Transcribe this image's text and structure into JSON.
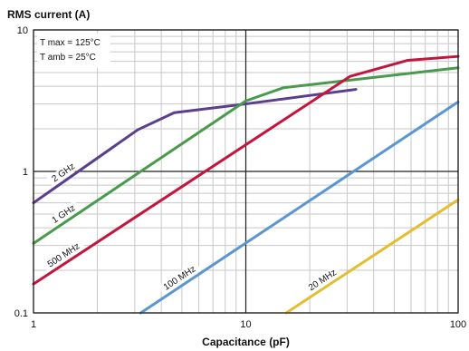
{
  "chart_data": {
    "type": "line",
    "title": "",
    "subtitle": "",
    "xlabel": "Capacitance (pF)",
    "ylabel": "RMS current (A)",
    "x_scale": "log",
    "y_scale": "log",
    "xlim": [
      1,
      100
    ],
    "ylim": [
      0.1,
      10
    ],
    "x_ticks": [
      {
        "value": 1,
        "label": "1"
      },
      {
        "value": 10,
        "label": "10"
      },
      {
        "value": 100,
        "label": "100"
      }
    ],
    "y_ticks": [
      {
        "value": 0.1,
        "label": "0.1"
      },
      {
        "value": 1,
        "label": "1"
      },
      {
        "value": 10,
        "label": "10"
      }
    ],
    "grid": true,
    "legend": "none",
    "annotations": [
      {
        "text": "T max = 125°C"
      },
      {
        "text": "T amb = 25°C"
      }
    ],
    "series": [
      {
        "name": "2 GHz",
        "color": "#5b3f8e",
        "x": [
          1,
          3.1,
          4.6,
          10,
          33
        ],
        "y": [
          0.6,
          1.97,
          2.6,
          3.0,
          3.8
        ]
      },
      {
        "name": "1 GHz",
        "color": "#4a9a4e",
        "x": [
          1,
          10,
          15,
          100
        ],
        "y": [
          0.31,
          3.15,
          3.9,
          5.4
        ]
      },
      {
        "name": "500 MHz",
        "color": "#c3163e",
        "x": [
          1,
          31,
          58,
          100
        ],
        "y": [
          0.16,
          4.7,
          6.1,
          6.5
        ]
      },
      {
        "name": "100 MHz",
        "color": "#5a96d2",
        "x": [
          3.2,
          100
        ],
        "y": [
          0.1,
          3.1
        ]
      },
      {
        "name": "20 MHz",
        "color": "#e4be2e",
        "x": [
          15.5,
          100
        ],
        "y": [
          0.1,
          0.63
        ]
      }
    ]
  }
}
